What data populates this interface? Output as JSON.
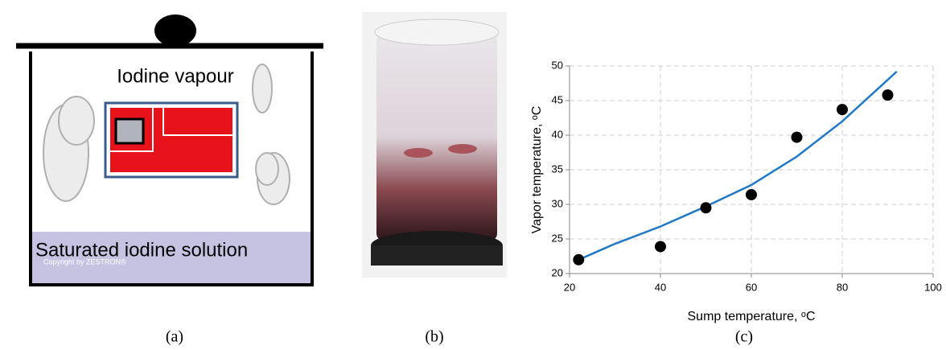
{
  "diagram": {
    "vapour_label": "Iodine vapour",
    "solution_label": "Saturated iodine solution",
    "copyright": "Copyright by ZESTRON®"
  },
  "captions": [
    "(a)",
    "(b)",
    "(c)"
  ],
  "chart_data": {
    "type": "scatter",
    "x_label": "Sump temperature, ᵒC",
    "y_label": "Vapor temperature, ᵒC",
    "xlim": [
      20,
      100
    ],
    "xticks": [
      20,
      40,
      60,
      80,
      100
    ],
    "ylim": [
      20,
      50
    ],
    "yticks": [
      20,
      25,
      30,
      35,
      40,
      45,
      50
    ],
    "grid": true,
    "series": [
      {
        "type": "scatter",
        "color": "#000000",
        "x": [
          22,
          40,
          50,
          60,
          70,
          80,
          90
        ],
        "values": [
          22,
          23.9,
          29.5,
          31.4,
          39.7,
          43.7,
          45.8
        ]
      },
      {
        "type": "line",
        "color": "#1f78c8",
        "x": [
          22,
          30,
          40,
          50,
          60,
          70,
          80,
          88,
          92
        ],
        "values": [
          22,
          24.3,
          26.8,
          29.7,
          32.8,
          36.9,
          42,
          46.8,
          49.2
        ]
      }
    ]
  }
}
